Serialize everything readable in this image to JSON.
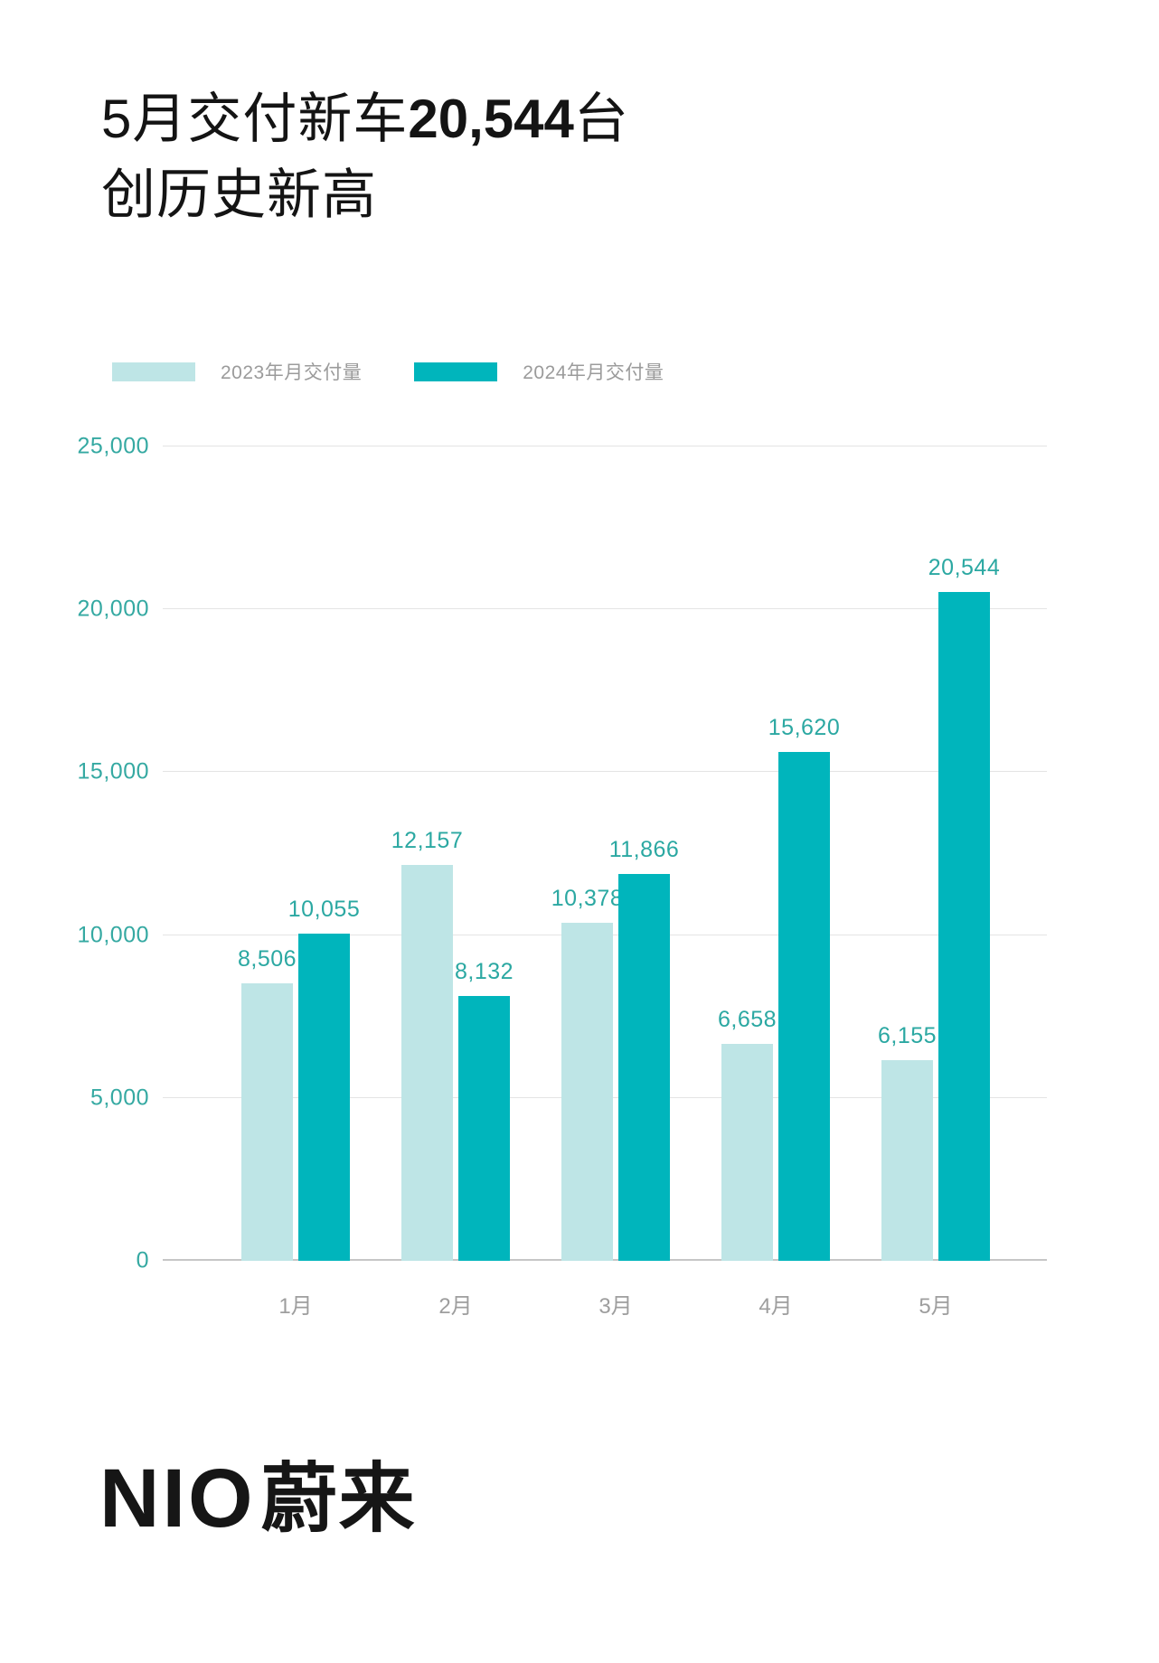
{
  "header": {
    "title_prefix": "5月交付新车",
    "title_number": "20,544",
    "title_suffix": "台",
    "title_line2": "创历史新高"
  },
  "legend": {
    "items": [
      {
        "label": "2023年月交付量",
        "color": "#bee5e6"
      },
      {
        "label": "2024年月交付量",
        "color": "#00b5bc"
      }
    ]
  },
  "chart_data": {
    "type": "bar",
    "categories": [
      "1月",
      "2月",
      "3月",
      "4月",
      "5月"
    ],
    "series": [
      {
        "name": "2023年月交付量",
        "color": "#bee5e6",
        "values": [
          8506,
          12157,
          10378,
          6658,
          6155
        ]
      },
      {
        "name": "2024年月交付量",
        "color": "#00b5bc",
        "values": [
          10055,
          8132,
          11866,
          15620,
          20544
        ]
      }
    ],
    "ylim": [
      0,
      25000
    ],
    "yticks": [
      0,
      5000,
      10000,
      15000,
      20000,
      25000
    ],
    "ytick_labels": [
      "0",
      "5,000",
      "10,000",
      "15,000",
      "20,000",
      "25,000"
    ],
    "grid": true,
    "legend_position": "top-left",
    "value_labels": true,
    "label_color": "#2ba8a2",
    "axis_label_color": "#9e9e9e"
  },
  "footer": {
    "logo_latin": "NIO",
    "logo_cn": "蔚来"
  }
}
